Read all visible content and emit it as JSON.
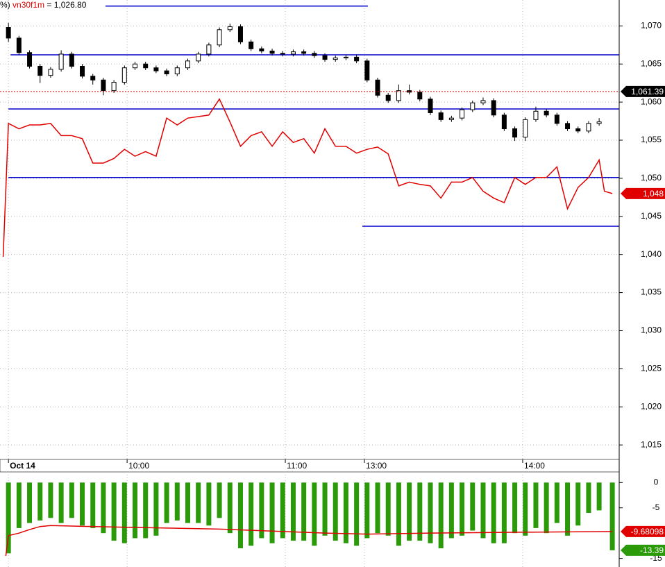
{
  "chart_data": [
    {
      "type": "candlestick",
      "header": [
        "%)",
        "vn30f1m",
        "= 1,026.80"
      ],
      "x": [
        0,
        4,
        8,
        12,
        16,
        20,
        24,
        28,
        32,
        36,
        40,
        44,
        48,
        52,
        56,
        60,
        64,
        68,
        72,
        76,
        80,
        84,
        88,
        92,
        96,
        100,
        104,
        108,
        112,
        116,
        120,
        124,
        128,
        132,
        136,
        140,
        144,
        148,
        152,
        156,
        160,
        164,
        168,
        172,
        176,
        180,
        184,
        188,
        192,
        196,
        200,
        204,
        208,
        212,
        216,
        220,
        224
      ],
      "open": [
        1069.8,
        1068.4,
        1066.5,
        1064.7,
        1063.5,
        1064.3,
        1066.3,
        1064.7,
        1063.4,
        1062.9,
        1061.5,
        1062.6,
        1064.5,
        1065.0,
        1064.5,
        1064.1,
        1063.7,
        1064.5,
        1065.4,
        1066.3,
        1067.5,
        1069.5,
        1069.9,
        1067.9,
        1067.0,
        1066.7,
        1066.4,
        1066.3,
        1066.6,
        1066.4,
        1066.1,
        1065.6,
        1065.8,
        1065.9,
        1065.4,
        1062.9,
        1060.9,
        1060.2,
        1061.5,
        1061.3,
        1060.4,
        1058.6,
        1057.7,
        1057.9,
        1059.0,
        1059.9,
        1060.2,
        1058.3,
        1056.5,
        1055.4,
        1057.7,
        1058.8,
        1058.3,
        1057.2,
        1056.5,
        1056.2,
        1057.2
      ],
      "high": [
        1070.4,
        1068.7,
        1066.8,
        1065.0,
        1064.6,
        1066.8,
        1066.6,
        1065.0,
        1063.7,
        1063.2,
        1062.9,
        1064.8,
        1065.3,
        1065.3,
        1064.8,
        1064.4,
        1064.8,
        1065.7,
        1066.6,
        1067.8,
        1069.8,
        1070.3,
        1070.2,
        1068.2,
        1067.3,
        1067.0,
        1066.7,
        1066.9,
        1066.9,
        1066.7,
        1066.4,
        1066.1,
        1066.2,
        1066.2,
        1065.7,
        1063.2,
        1061.2,
        1062.3,
        1062.3,
        1061.6,
        1060.7,
        1058.9,
        1058.2,
        1059.3,
        1060.2,
        1060.6,
        1060.5,
        1058.6,
        1056.8,
        1058.0,
        1059.4,
        1059.1,
        1058.6,
        1057.5,
        1056.8,
        1057.5,
        1057.9
      ],
      "low": [
        1067.9,
        1066.2,
        1064.4,
        1062.5,
        1063.2,
        1064.0,
        1064.4,
        1063.1,
        1062.3,
        1060.9,
        1061.2,
        1062.3,
        1064.2,
        1064.2,
        1063.8,
        1063.4,
        1063.4,
        1064.2,
        1065.1,
        1066.0,
        1067.2,
        1069.2,
        1067.6,
        1066.7,
        1066.4,
        1066.1,
        1066.0,
        1066.0,
        1066.1,
        1065.8,
        1065.3,
        1065.3,
        1065.5,
        1065.1,
        1062.6,
        1060.6,
        1059.9,
        1059.9,
        1061.0,
        1060.1,
        1058.3,
        1057.4,
        1057.4,
        1057.6,
        1058.7,
        1059.6,
        1058.0,
        1056.2,
        1054.9,
        1054.9,
        1057.4,
        1058.0,
        1056.9,
        1056.2,
        1055.9,
        1055.9,
        1056.9
      ],
      "close": [
        1068.4,
        1066.5,
        1064.7,
        1063.5,
        1064.3,
        1066.3,
        1064.7,
        1063.4,
        1062.9,
        1061.5,
        1062.6,
        1064.5,
        1065.0,
        1064.5,
        1064.1,
        1063.7,
        1064.5,
        1065.4,
        1066.3,
        1067.5,
        1069.5,
        1069.9,
        1067.9,
        1067.0,
        1066.7,
        1066.4,
        1066.3,
        1066.6,
        1066.4,
        1066.1,
        1065.6,
        1065.8,
        1065.9,
        1065.4,
        1062.9,
        1060.9,
        1060.2,
        1061.5,
        1061.3,
        1060.4,
        1058.6,
        1057.7,
        1057.9,
        1059.0,
        1059.9,
        1060.2,
        1058.3,
        1056.5,
        1055.4,
        1057.7,
        1058.8,
        1058.3,
        1057.2,
        1056.5,
        1056.2,
        1057.2,
        1057.4
      ],
      "color": "#000000",
      "line": {
        "color": "#e00000",
        "x": [
          -2,
          0,
          4,
          8,
          12,
          16,
          20,
          24,
          28,
          32,
          36,
          40,
          44,
          48,
          52,
          56,
          60,
          64,
          68,
          72,
          76,
          80,
          84,
          88,
          92,
          96,
          100,
          104,
          108,
          112,
          116,
          120,
          124,
          128,
          132,
          136,
          140,
          144,
          148,
          152,
          156,
          160,
          164,
          168,
          172,
          176,
          180,
          184,
          188,
          192,
          196,
          200,
          204,
          208,
          212,
          216,
          220,
          224,
          226,
          229
        ],
        "values": [
          1039.7,
          1057.2,
          1056.5,
          1057.0,
          1057.0,
          1057.2,
          1055.6,
          1055.6,
          1055.2,
          1052.0,
          1052.0,
          1052.6,
          1053.8,
          1052.9,
          1053.5,
          1052.9,
          1057.9,
          1057.0,
          1057.9,
          1058.1,
          1058.3,
          1060.4,
          1057.4,
          1054.2,
          1055.6,
          1056.1,
          1054.2,
          1056.1,
          1054.7,
          1055.2,
          1053.3,
          1056.5,
          1054.2,
          1054.2,
          1053.3,
          1053.8,
          1054.1,
          1053.2,
          1049.0,
          1049.5,
          1049.2,
          1049.0,
          1047.4,
          1049.5,
          1049.5,
          1050.1,
          1048.3,
          1047.4,
          1046.8,
          1050.1,
          1049.2,
          1050.1,
          1050.1,
          1051.5,
          1046.0,
          1048.8,
          1050.1,
          1052.4,
          1048.3,
          1048.0
        ]
      },
      "hlines": [
        {
          "value": 1072.6,
          "x": [
            36.8,
            136.3
          ],
          "color": "#0000cc"
        },
        {
          "value": 1066.2,
          "x": [
            0.8,
            231.6
          ],
          "color": "#0000cc"
        },
        {
          "value": 1059.1,
          "x": [
            0,
            231.6
          ],
          "color": "#0000cc"
        },
        {
          "value": 1050.1,
          "x": [
            0,
            231.6
          ],
          "color": "#0000cc"
        },
        {
          "value": 1043.7,
          "x": [
            134.2,
            231.6
          ],
          "color": "#0000cc"
        }
      ],
      "price_marks": [
        {
          "value": 1061.39,
          "label": "1,061.39",
          "color": "#000000",
          "guide": "dashed"
        },
        {
          "value": 1048,
          "label": "1,048",
          "color": "#e00000"
        }
      ],
      "xlim": [
        -3.2,
        231.6
      ],
      "ylim": [
        1013.1,
        1073.4
      ],
      "xticks": [
        {
          "value": 0,
          "label": "Oct 14"
        },
        {
          "value": 45,
          "label": "10:00"
        },
        {
          "value": 105,
          "label": "11:00"
        },
        {
          "value": 135,
          "label": "13:00"
        },
        {
          "value": 195,
          "label": "14:00"
        }
      ],
      "yticks": [
        {
          "value": 1015,
          "label": "1,015"
        },
        {
          "value": 1020,
          "label": "1,020"
        },
        {
          "value": 1025,
          "label": "1,025"
        },
        {
          "value": 1030,
          "label": "1,030"
        },
        {
          "value": 1035,
          "label": "1,035"
        },
        {
          "value": 1040,
          "label": "1,040"
        },
        {
          "value": 1045,
          "label": "1,045"
        },
        {
          "value": 1050,
          "label": "1,050"
        },
        {
          "value": 1055,
          "label": "1,055"
        },
        {
          "value": 1060,
          "label": "1,060"
        },
        {
          "value": 1065,
          "label": "1,065"
        },
        {
          "value": 1070,
          "label": "1,070"
        }
      ],
      "grid": true
    },
    {
      "type": "bar",
      "x": [
        0,
        4,
        8,
        12,
        16,
        20,
        24,
        28,
        32,
        36,
        40,
        44,
        48,
        52,
        56,
        60,
        64,
        68,
        72,
        76,
        80,
        84,
        88,
        92,
        96,
        100,
        104,
        108,
        112,
        116,
        120,
        124,
        128,
        132,
        136,
        140,
        144,
        148,
        152,
        156,
        160,
        164,
        168,
        172,
        176,
        180,
        184,
        188,
        192,
        196,
        200,
        204,
        208,
        212,
        216,
        220,
        224,
        229
      ],
      "values": [
        -14,
        -9,
        -8,
        -7.5,
        -7,
        -8,
        -7,
        -8.5,
        -9,
        -10,
        -11.5,
        -12,
        -11,
        -11,
        -10.5,
        -8,
        -7.5,
        -8,
        -8,
        -8.5,
        -7,
        -10,
        -13,
        -12.5,
        -11,
        -12,
        -11,
        -11.5,
        -11.5,
        -12.5,
        -10.5,
        -11.5,
        -12,
        -12.5,
        -11,
        -10,
        -10.5,
        -12.5,
        -11.5,
        -11.5,
        -12,
        -13,
        -11,
        -10.5,
        -9.5,
        -11,
        -12,
        -12,
        -10,
        -10.5,
        -9,
        -10,
        -8,
        -10.5,
        -8.5,
        -6,
        -5.5,
        -13.39
      ],
      "color": "#2a9a08",
      "line": {
        "color": "#e00000",
        "x": [
          -1,
          0,
          4,
          8,
          12,
          16,
          24,
          40,
          60,
          80,
          100,
          120,
          136,
          160,
          200,
          229
        ],
        "values": [
          -14.5,
          -10.5,
          -10,
          -9.3,
          -8.7,
          -8.5,
          -8.6,
          -8.8,
          -9,
          -9.2,
          -9.6,
          -10,
          -10.2,
          -10,
          -9.8,
          -9.68
        ]
      },
      "price_marks": [
        {
          "value": -9.68098,
          "label": "-9.68098",
          "color": "#e00000"
        },
        {
          "value": -13.39,
          "label": "-13.39",
          "color": "#2a9a08"
        }
      ],
      "xlim": [
        -3.2,
        231.6
      ],
      "ylim": [
        -16.7,
        2.1
      ],
      "yticks": [
        0,
        -5,
        -15
      ]
    }
  ]
}
